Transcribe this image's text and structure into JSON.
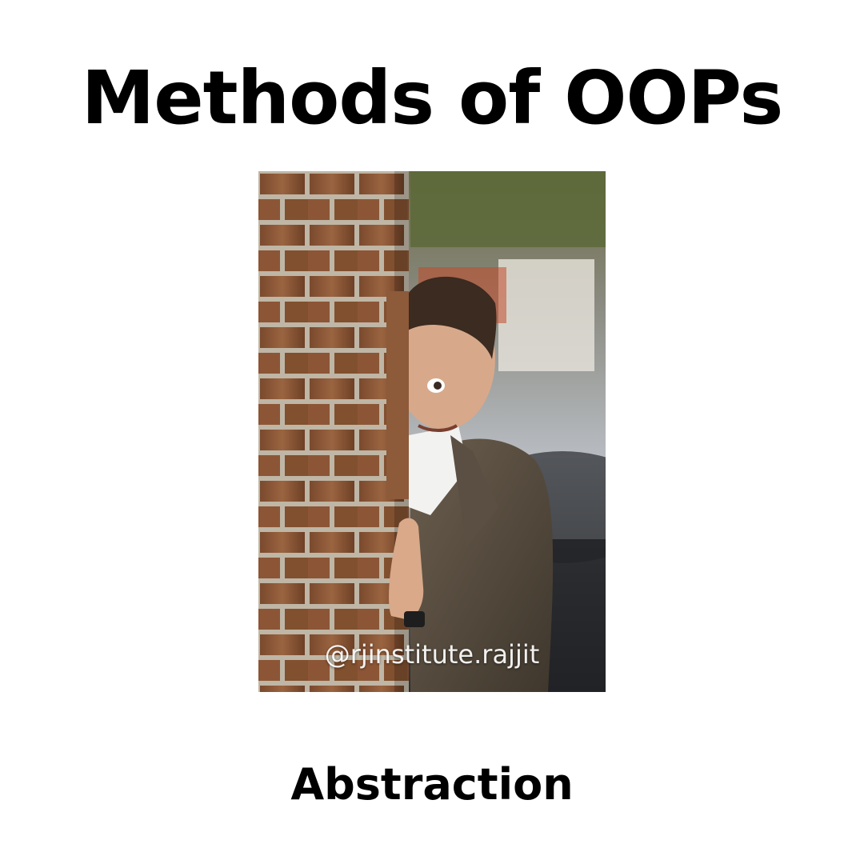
{
  "slide": {
    "title": "Methods of OOPs",
    "caption": "Abstraction",
    "background_color": "#ffffff"
  },
  "photo": {
    "subject": "man in tweed jacket peeking around a brick wall",
    "watermark": "@rjinstitute.rajjit"
  }
}
